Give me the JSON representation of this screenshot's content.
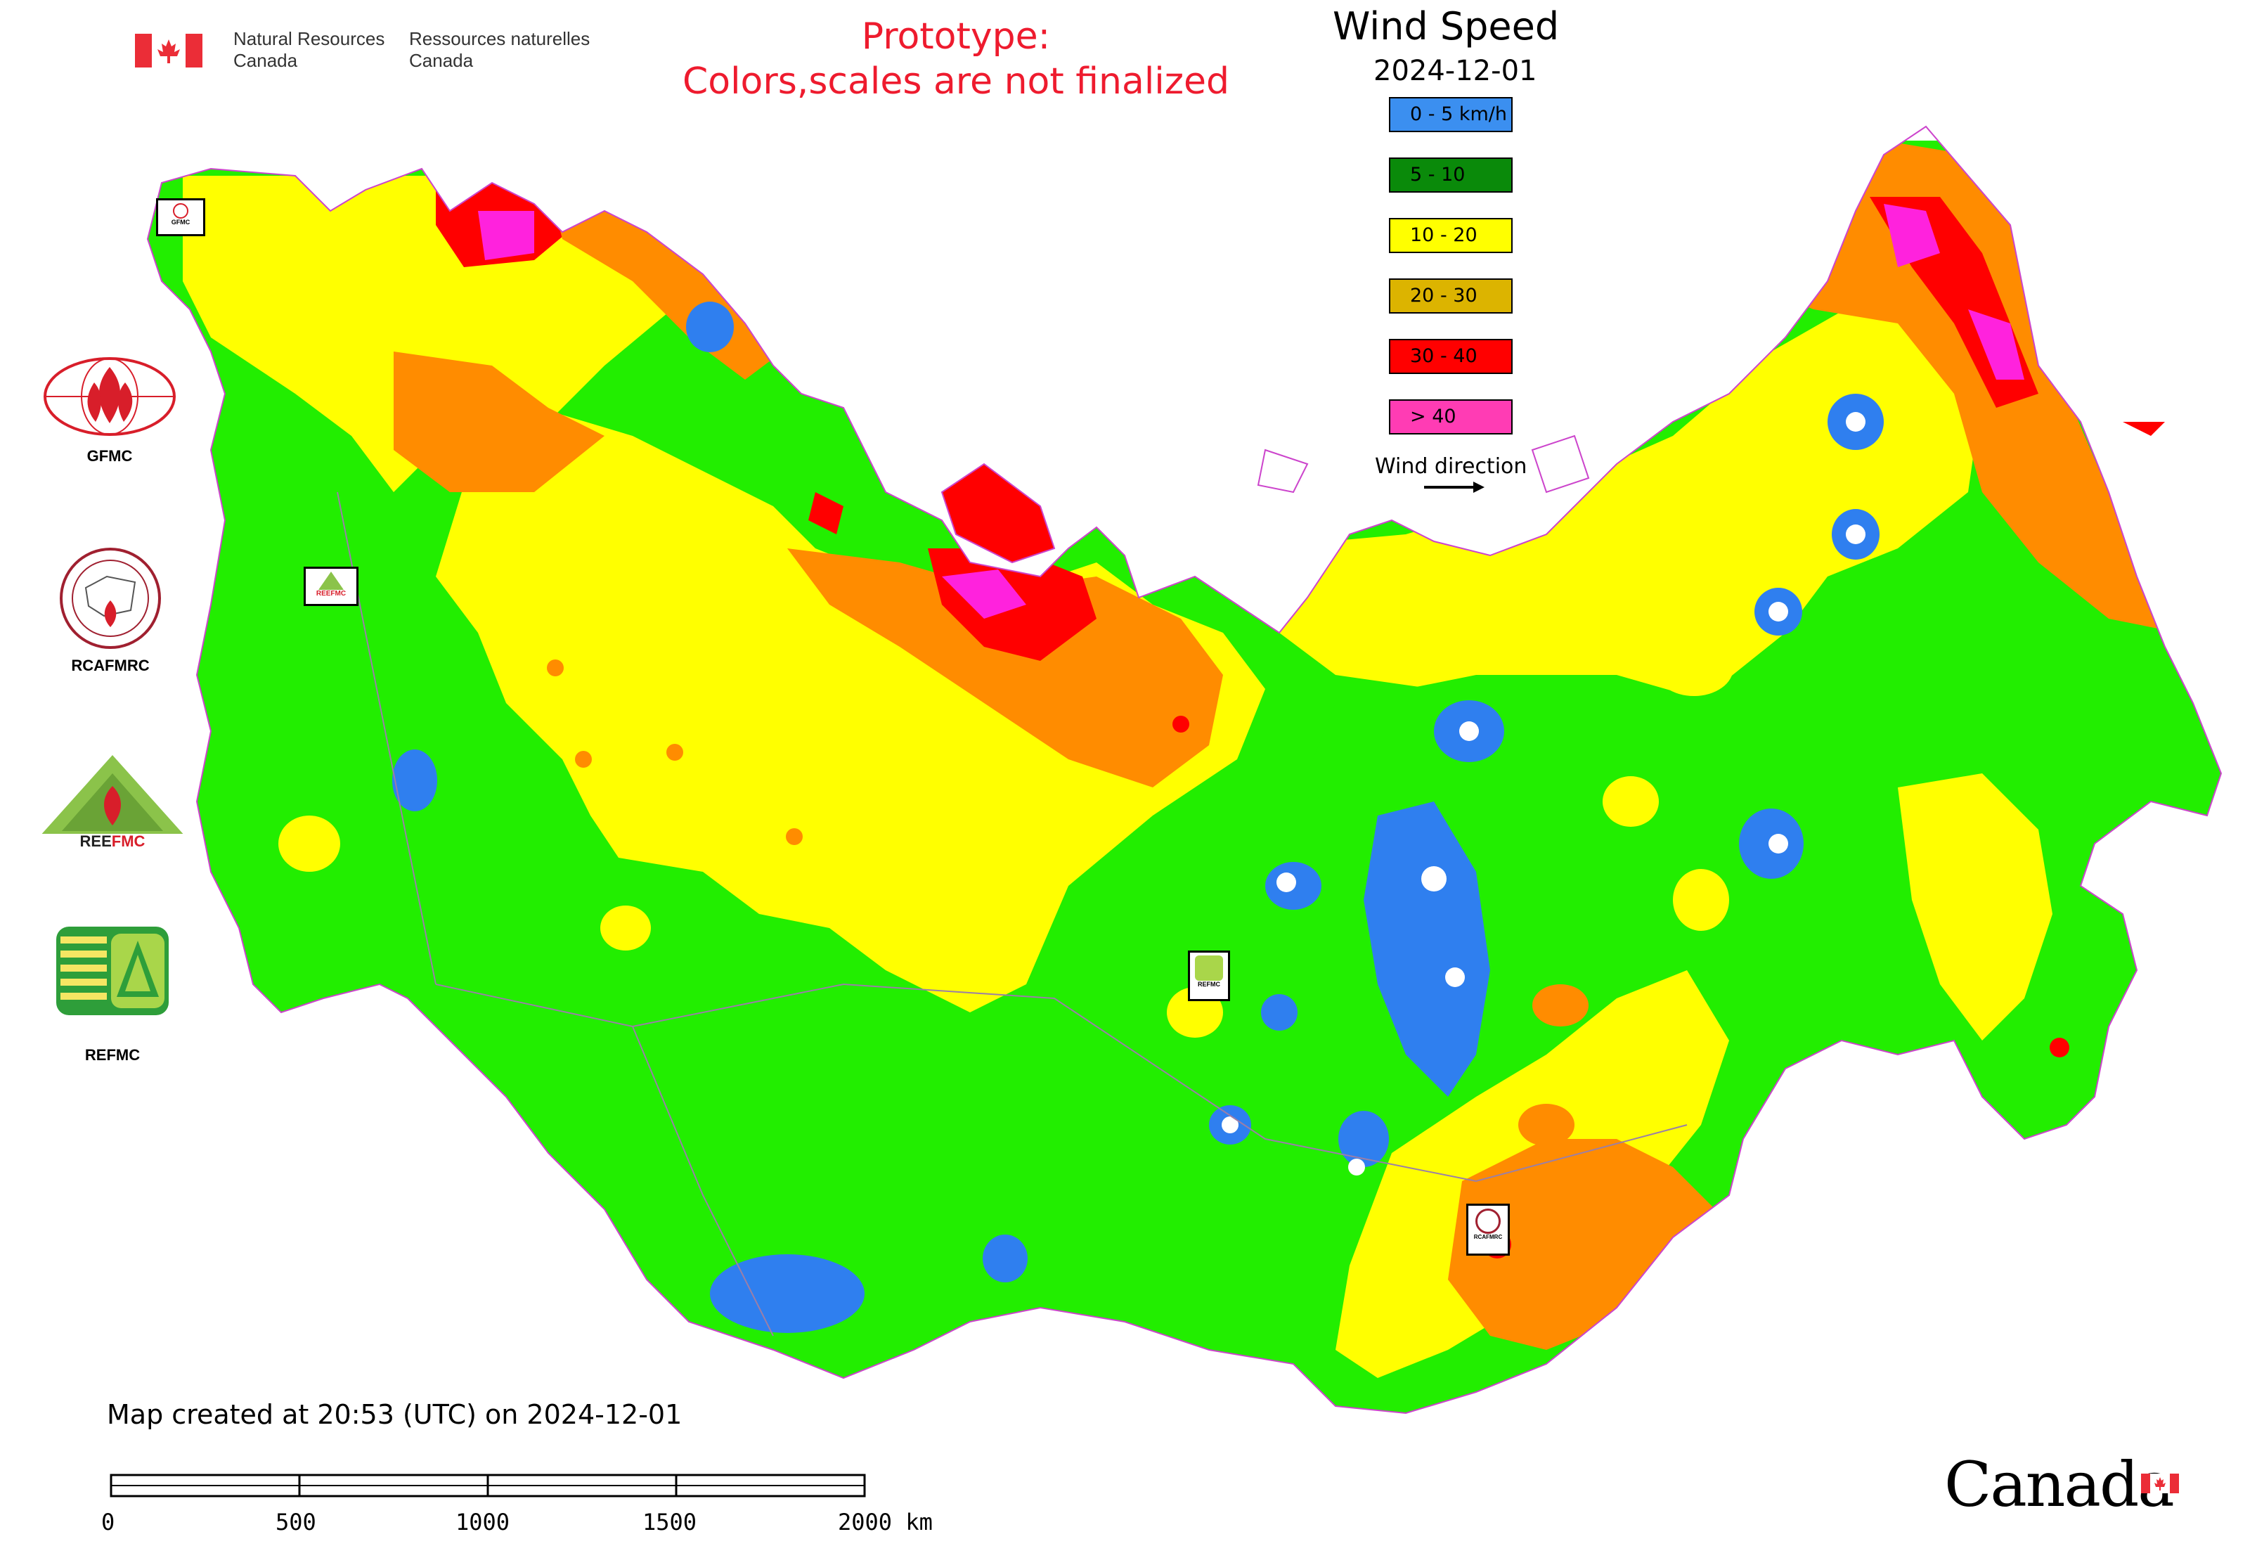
{
  "header": {
    "gov_en_line1": "Natural Resources",
    "gov_en_line2": "Canada",
    "gov_fr_line1": "Ressources naturelles",
    "gov_fr_line2": "Canada",
    "prototype_line1": "Prototype:",
    "prototype_line2": "Colors,scales are not finalized"
  },
  "legend": {
    "title": "Wind Speed",
    "date": "2024-12-01",
    "items": [
      {
        "label": "0 - 5 km/h",
        "color": "#3b8ff0"
      },
      {
        "label": "5 - 10",
        "color": "#0a8a0a"
      },
      {
        "label": "10 - 20",
        "color": "#ffff00"
      },
      {
        "label": "20 - 30",
        "color": "#dcb400"
      },
      {
        "label": "30 - 40",
        "color": "#ff0000"
      },
      {
        "label": "> 40",
        "color": "#ff3cb4"
      }
    ],
    "wind_direction_label": "Wind direction"
  },
  "organizations": [
    {
      "name": "GFMC"
    },
    {
      "name": "RCAFMRC"
    },
    {
      "name": "REEFMC"
    },
    {
      "name": "REFMC"
    }
  ],
  "map_markers": {
    "gfmc_marker": "GFMC",
    "reefmc_marker": "REEFMC",
    "refmc_marker": "REFMC",
    "rcafmrc_marker": "RCAFMRC"
  },
  "footer": {
    "created_text": "Map created at 20:53 (UTC) on 2024-12-01",
    "scale_labels": [
      "0",
      "500",
      "1000",
      "1500",
      "2000 km"
    ],
    "wordmark": "Canada"
  },
  "colors": {
    "calm_blue": "#2f7fef",
    "light_green": "#22ee00",
    "yellow": "#ffff00",
    "orange": "#ff8c00",
    "red": "#ff0000",
    "magenta": "#ff22dd",
    "canada_red": "#eb2d37"
  }
}
